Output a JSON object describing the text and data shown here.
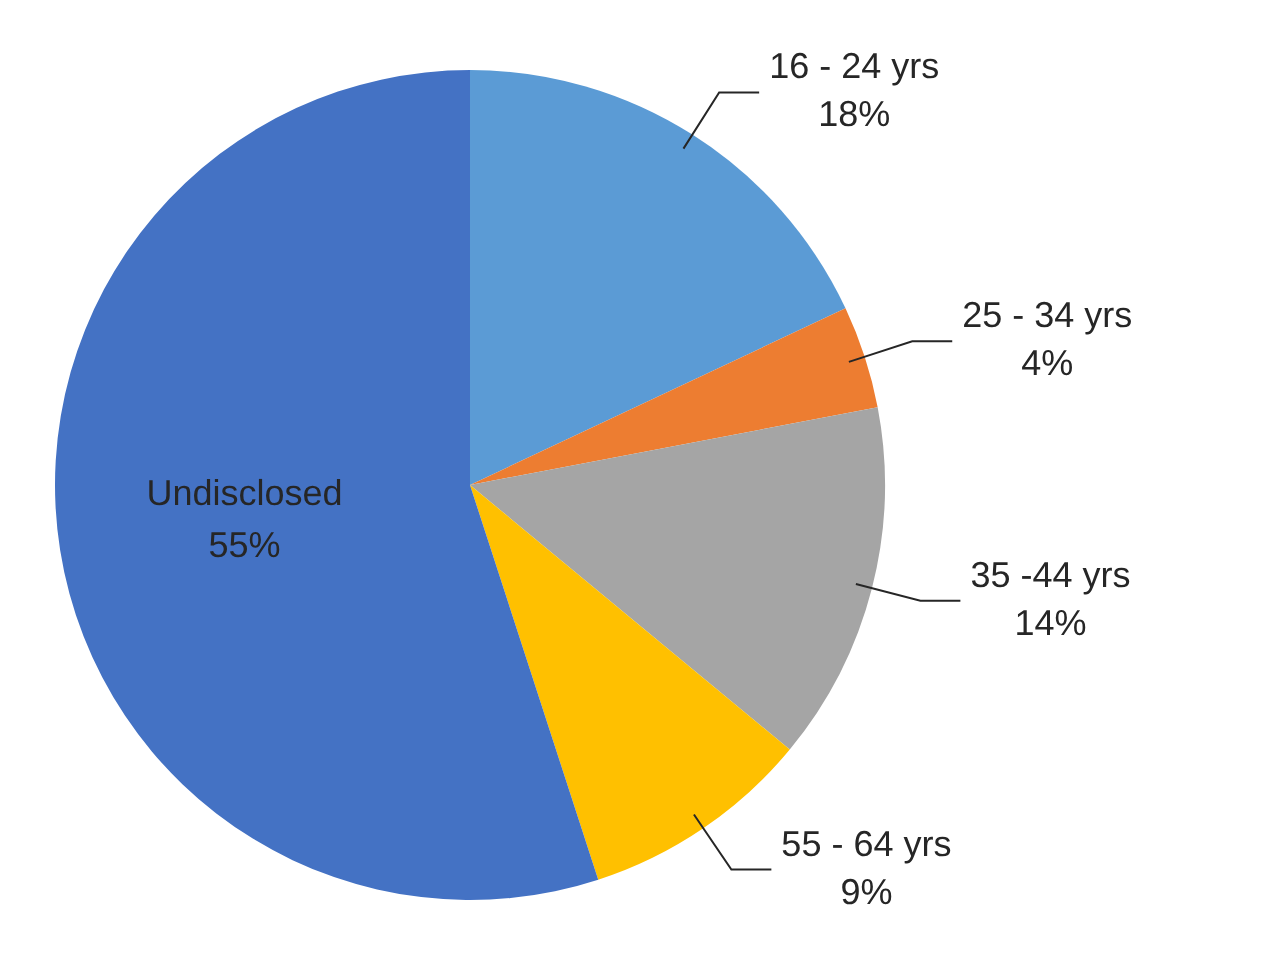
{
  "chart_data": {
    "type": "pie",
    "categories": [
      "16 - 24 yrs",
      "25 - 34 yrs",
      "35 -44 yrs",
      "55 - 64 yrs",
      "Undisclosed"
    ],
    "values": [
      18,
      4,
      14,
      9,
      55
    ],
    "value_labels": [
      "18%",
      "4%",
      "14%",
      "9%",
      "55%"
    ],
    "colors": [
      "#5b9bd5",
      "#ed7d31",
      "#a5a5a5",
      "#ffc000",
      "#4472c4"
    ],
    "legend": false
  }
}
